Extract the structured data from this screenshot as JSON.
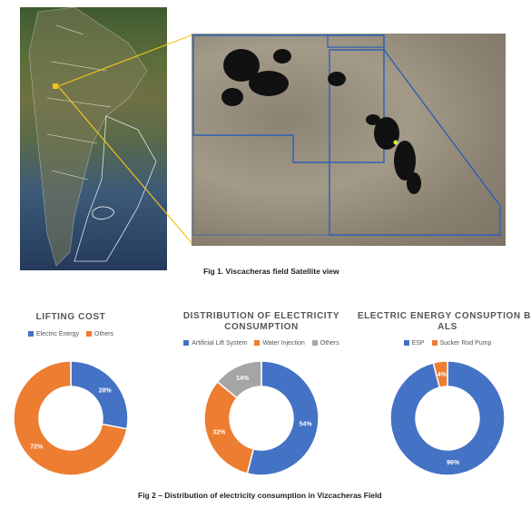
{
  "figure1": {
    "caption": "Fig 1. Viscacheras field Satellite view"
  },
  "figure2": {
    "caption": "Fig 2 – Distribution of electricity consumption in Vizcacheras Field"
  },
  "colors": {
    "blue": "#4472C4",
    "orange": "#ED7D31",
    "gray": "#A5A5A5",
    "callout_line": "#f0c419",
    "field_boundary": "#2f5fb3"
  },
  "chart_data": [
    {
      "type": "pie",
      "donut": true,
      "title": "LIFTING COST",
      "legend_position": "top",
      "categories": [
        "Electric Energy",
        "Others"
      ],
      "values": [
        28,
        72
      ],
      "labels": [
        "28%",
        "72%"
      ]
    },
    {
      "type": "pie",
      "donut": true,
      "title": "DISTRIBUTION OF ELECTRICITY CONSUMPTION",
      "legend_position": "top",
      "categories": [
        "Artificial Lift System",
        "Water Injection",
        "Others"
      ],
      "values": [
        54,
        32,
        14
      ],
      "labels": [
        "54%",
        "32%",
        "14%"
      ]
    },
    {
      "type": "pie",
      "donut": true,
      "title": "ELECTRIC ENERGY CONSUPTION BY ALS",
      "legend_position": "top",
      "categories": [
        "ESP",
        "Sucker Rod Pump"
      ],
      "values": [
        96,
        4
      ],
      "labels": [
        "96%",
        "4%"
      ]
    }
  ]
}
